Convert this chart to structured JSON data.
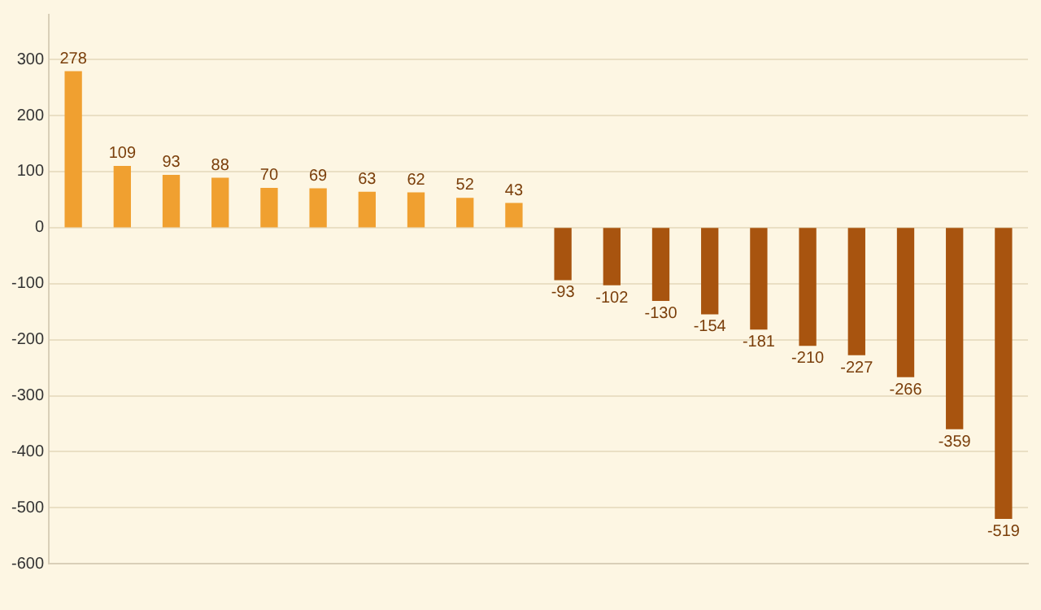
{
  "chart_data": {
    "type": "bar",
    "categories": [
      null,
      null,
      null,
      null,
      null,
      null,
      null,
      null,
      null,
      null,
      null,
      null,
      null,
      null,
      null,
      null,
      null,
      null,
      null,
      null
    ],
    "values": [
      278,
      109,
      93,
      88,
      70,
      69,
      63,
      62,
      52,
      43,
      -93,
      -102,
      -130,
      -154,
      -181,
      -210,
      -227,
      -266,
      -359,
      -519
    ],
    "colors": [
      "#f0a030",
      "#f0a030",
      "#f0a030",
      "#f0a030",
      "#f0a030",
      "#f0a030",
      "#f0a030",
      "#f0a030",
      "#f0a030",
      "#f0a030",
      "#a8540f",
      "#a8540f",
      "#a8540f",
      "#a8540f",
      "#a8540f",
      "#a8540f",
      "#a8540f",
      "#a8540f",
      "#a8540f",
      "#a8540f"
    ],
    "ylim": [
      -600,
      380
    ],
    "yticks": [
      -600,
      -500,
      -400,
      -300,
      -200,
      -100,
      0,
      100,
      200,
      300
    ],
    "grid": "y",
    "legend": false,
    "data_labels": true
  }
}
